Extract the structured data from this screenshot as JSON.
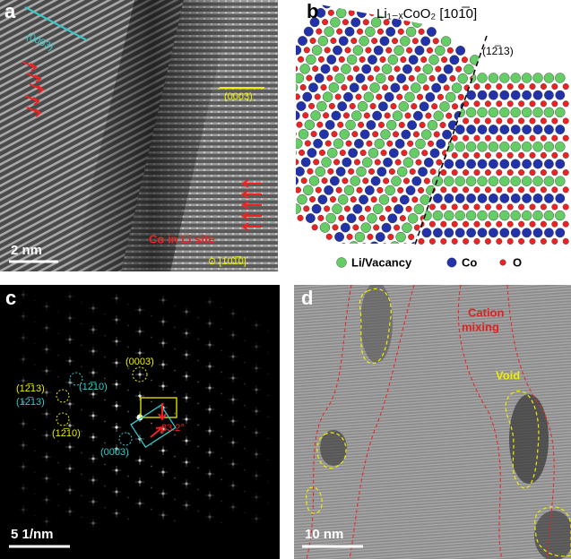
{
  "panel_a": {
    "label": "a",
    "cyan_plane": "(0003)",
    "yellow_plane": "(0003)",
    "scale": "2 nm",
    "annotation": "Co in Li site",
    "zone_axis": "⊙ [101̅0]"
  },
  "panel_b": {
    "label": "b",
    "title": "Li₁₋ₓCoO₂ [101̅0]",
    "plane": "(12̅13)",
    "legend": [
      "Li/Vacancy",
      "Co",
      "O"
    ]
  },
  "panel_c": {
    "label": "c",
    "yellow_1213": "(12̅13)",
    "cyan_1213": "(12̅13)",
    "cyan_1210": "(12̅10)",
    "yellow_1210": "(12̅10)",
    "yellow_0003": "(0003)",
    "cyan_0003": "(0003)",
    "angle": "33.2°",
    "scale": "5 1/nm"
  },
  "panel_d": {
    "label": "d",
    "annotation_lines": [
      "Cation",
      "mixing"
    ],
    "void": "Void",
    "scale": "10 nm"
  }
}
